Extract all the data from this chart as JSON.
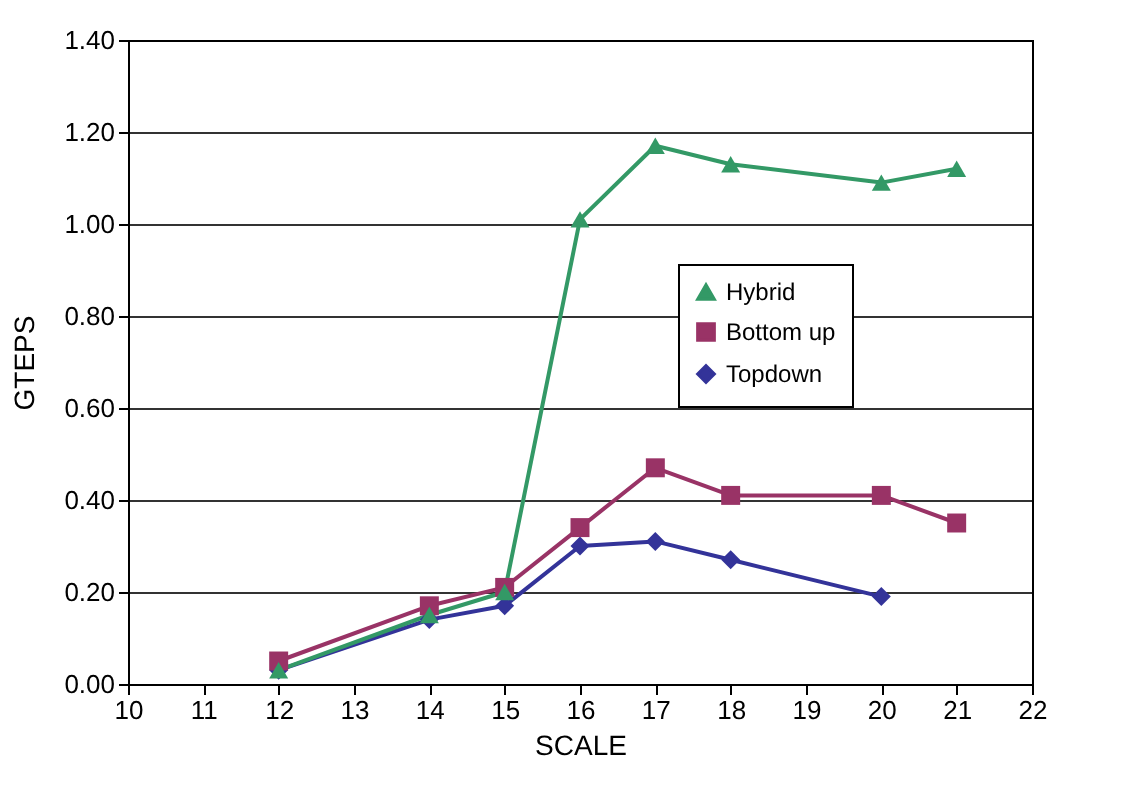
{
  "chart_data": {
    "type": "line",
    "xlabel": "SCALE",
    "ylabel": "GTEPS",
    "x": [
      12,
      14,
      15,
      16,
      17,
      18,
      20,
      21
    ],
    "series": [
      {
        "name": "Hybrid",
        "color": "#339966",
        "marker": "triangle",
        "values": [
          0.03,
          0.15,
          0.2,
          1.01,
          1.17,
          1.13,
          1.09,
          1.12
        ]
      },
      {
        "name": "Bottom up",
        "color": "#993366",
        "marker": "square",
        "values": [
          0.05,
          0.17,
          0.21,
          0.34,
          0.47,
          0.41,
          0.41,
          0.35
        ]
      },
      {
        "name": "Topdown",
        "color": "#333399",
        "marker": "diamond",
        "values": [
          0.03,
          0.14,
          0.17,
          0.3,
          0.31,
          0.27,
          0.19,
          null
        ]
      }
    ],
    "xlim": [
      10,
      22
    ],
    "xticks": [
      10,
      11,
      12,
      13,
      14,
      15,
      16,
      17,
      18,
      19,
      20,
      21,
      22
    ],
    "ylim": [
      0,
      1.4
    ],
    "yticks": [
      {
        "value": 0,
        "label": "0.00"
      },
      {
        "value": 0.2,
        "label": "0.20"
      },
      {
        "value": 0.4,
        "label": "0.40"
      },
      {
        "value": 0.6,
        "label": "0.60"
      },
      {
        "value": 0.8,
        "label": "0.80"
      },
      {
        "value": 1,
        "label": "1.00"
      },
      {
        "value": 1.2,
        "label": "1.20"
      },
      {
        "value": 1.4,
        "label": "1.40"
      }
    ],
    "grid": "y",
    "legend": "right",
    "line_style": "solid"
  }
}
